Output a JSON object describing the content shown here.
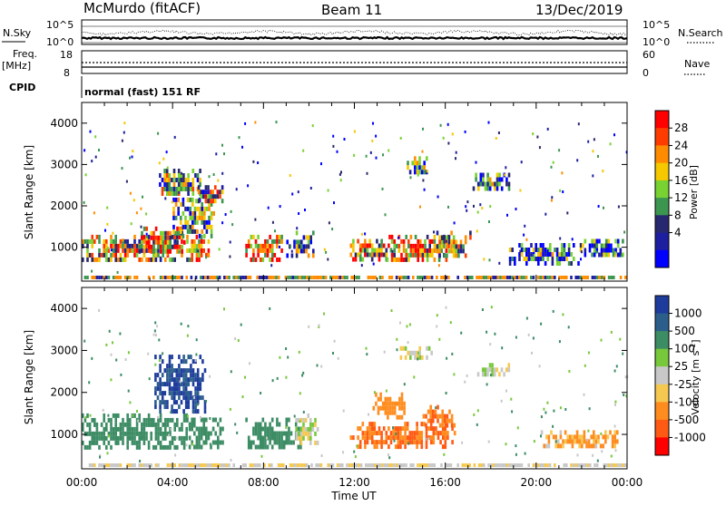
{
  "header": {
    "station": "McMurdo (fitACF)",
    "beam": "Beam 11",
    "date": "13/Dec/2019"
  },
  "top_panel": {
    "left_label": "N.Sky",
    "right_label": "N.Search",
    "ticks_left": [
      "10^5",
      "10^0"
    ],
    "ticks_right": [
      "10^5",
      "10^0"
    ]
  },
  "freq_panel": {
    "left_label_1": "Freq.",
    "left_label_2": "[MHz]",
    "right_label": "Nave",
    "ticks_left": [
      "18",
      "8"
    ],
    "ticks_right": [
      "60",
      "0"
    ]
  },
  "cpid": {
    "label": "CPID",
    "text": "normal (fast) 151 RF"
  },
  "x_axis": {
    "label": "Time UT",
    "ticks": [
      "00:00",
      "04:00",
      "08:00",
      "12:00",
      "16:00",
      "20:00",
      "00:00"
    ]
  },
  "chart_data": [
    {
      "type": "heatmap",
      "quantity": "Power",
      "ylabel": "Slant Range [km]",
      "ylim": [
        180,
        4500
      ],
      "yticks": [
        "1000",
        "2000",
        "3000",
        "4000"
      ],
      "xlim_hours": [
        0,
        24
      ],
      "colorbar_label": "Power [dB]",
      "colorbar_ticks": [
        "28",
        "24",
        "20",
        "16",
        "12",
        "8",
        "4"
      ],
      "colorbar_colors": [
        "#ff0000",
        "#ff3c00",
        "#ff8c00",
        "#f5c800",
        "#78d232",
        "#3c9650",
        "#28286e",
        "#1e1ea0",
        "#0000ff"
      ],
      "regions": [
        {
          "t": [
            0.0,
            4.4
          ],
          "r": [
            700,
            1300
          ],
          "level": 0.55
        },
        {
          "t": [
            2.5,
            4.5
          ],
          "r": [
            900,
            1500
          ],
          "level": 0.7
        },
        {
          "t": [
            3.4,
            5.2
          ],
          "r": [
            2300,
            2900
          ],
          "level": 0.45
        },
        {
          "t": [
            4.0,
            5.8
          ],
          "r": [
            1300,
            2200
          ],
          "level": 0.4
        },
        {
          "t": [
            4.6,
            5.6
          ],
          "r": [
            700,
            1300
          ],
          "level": 0.75
        },
        {
          "t": [
            5.0,
            6.2
          ],
          "r": [
            2100,
            2500
          ],
          "level": 0.5
        },
        {
          "t": [
            7.2,
            8.8
          ],
          "r": [
            650,
            1300
          ],
          "level": 0.75
        },
        {
          "t": [
            9.0,
            10.2
          ],
          "r": [
            800,
            1400
          ],
          "level": 0.35
        },
        {
          "t": [
            11.8,
            13.6
          ],
          "r": [
            700,
            1200
          ],
          "level": 0.6
        },
        {
          "t": [
            13.4,
            16.2
          ],
          "r": [
            650,
            1300
          ],
          "level": 0.7
        },
        {
          "t": [
            14.2,
            15.2
          ],
          "r": [
            2800,
            3200
          ],
          "level": 0.35
        },
        {
          "t": [
            15.6,
            17.2
          ],
          "r": [
            750,
            1400
          ],
          "level": 0.5
        },
        {
          "t": [
            17.2,
            18.8
          ],
          "r": [
            2400,
            2800
          ],
          "level": 0.3
        },
        {
          "t": [
            18.8,
            22.0
          ],
          "r": [
            650,
            1100
          ],
          "level": 0.25
        },
        {
          "t": [
            22.0,
            23.8
          ],
          "r": [
            800,
            1200
          ],
          "level": 0.2
        }
      ]
    },
    {
      "type": "heatmap",
      "quantity": "Velocity",
      "ylabel": "Slant Range [km]",
      "ylim": [
        180,
        4500
      ],
      "yticks": [
        "1000",
        "2000",
        "3000",
        "4000"
      ],
      "xlim_hours": [
        0,
        24
      ],
      "colorbar_label": "Velocity [m s",
      "colorbar_label_sup": "-1",
      "colorbar_label_end": "]",
      "colorbar_ticks": [
        "1000",
        "500",
        "100",
        "25",
        "-25",
        "-100",
        "-500",
        "-1000"
      ],
      "colorbar_colors": [
        "#1e3c9c",
        "#2c5e8c",
        "#3c8c64",
        "#78c83c",
        "#c8c8c8",
        "#f5c850",
        "#ff8c1e",
        "#ff5a14",
        "#ff0000"
      ],
      "regions": [
        {
          "t": [
            0.0,
            4.6
          ],
          "r": [
            700,
            1500
          ],
          "v": 200
        },
        {
          "t": [
            3.2,
            5.4
          ],
          "r": [
            1600,
            2900
          ],
          "v": 800
        },
        {
          "t": [
            4.6,
            6.2
          ],
          "r": [
            700,
            1400
          ],
          "v": 150
        },
        {
          "t": [
            7.2,
            9.6
          ],
          "r": [
            650,
            1400
          ],
          "v": 200
        },
        {
          "t": [
            9.4,
            10.4
          ],
          "r": [
            800,
            1500
          ],
          "v": 0
        },
        {
          "t": [
            11.8,
            16.4
          ],
          "r": [
            700,
            1300
          ],
          "v": -300
        },
        {
          "t": [
            12.8,
            14.2
          ],
          "r": [
            1400,
            2000
          ],
          "v": -200
        },
        {
          "t": [
            15.0,
            16.4
          ],
          "r": [
            1200,
            1700
          ],
          "v": -300
        },
        {
          "t": [
            14.0,
            15.4
          ],
          "r": [
            2800,
            3100
          ],
          "v": 0
        },
        {
          "t": [
            17.4,
            18.8
          ],
          "r": [
            2400,
            2700
          ],
          "v": 0
        },
        {
          "t": [
            20.2,
            23.6
          ],
          "r": [
            700,
            1100
          ],
          "v": -80
        }
      ]
    }
  ]
}
